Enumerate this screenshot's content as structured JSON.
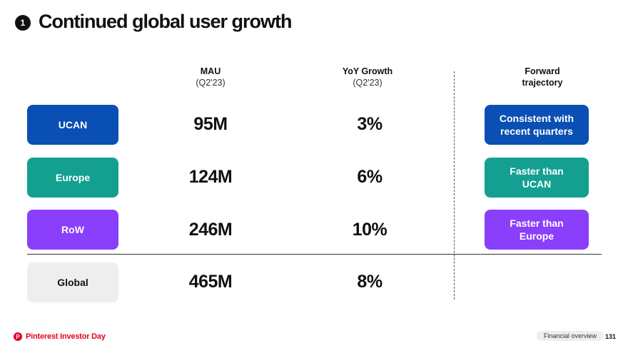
{
  "slide": {
    "number_badge": "1",
    "title": "Continued global user growth"
  },
  "columns": {
    "mau": {
      "header": "MAU",
      "sub": "(Q2'23)"
    },
    "yoy": {
      "header": "YoY Growth",
      "sub": "(Q2'23)"
    },
    "forward": {
      "header": "Forward",
      "sub": "trajectory"
    }
  },
  "rows": [
    {
      "region": "UCAN",
      "mau": "95M",
      "yoy": "3%",
      "trajectory_line1": "Consistent with",
      "trajectory_line2": "recent quarters",
      "color": "#0a4fb3"
    },
    {
      "region": "Europe",
      "mau": "124M",
      "yoy": "6%",
      "trajectory_line1": "Faster than",
      "trajectory_line2": "UCAN",
      "color": "#13a091"
    },
    {
      "region": "RoW",
      "mau": "246M",
      "yoy": "10%",
      "trajectory_line1": "Faster than",
      "trajectory_line2": "Europe",
      "color": "#8a3ffc"
    },
    {
      "region": "Global",
      "mau": "465M",
      "yoy": "8%",
      "color": "#eeeeee"
    }
  ],
  "footer": {
    "logo_letter": "P",
    "brand": "Pinterest Investor Day",
    "section": "Financial overview",
    "page": "131"
  },
  "colors": {
    "brand_red": "#e60023"
  }
}
